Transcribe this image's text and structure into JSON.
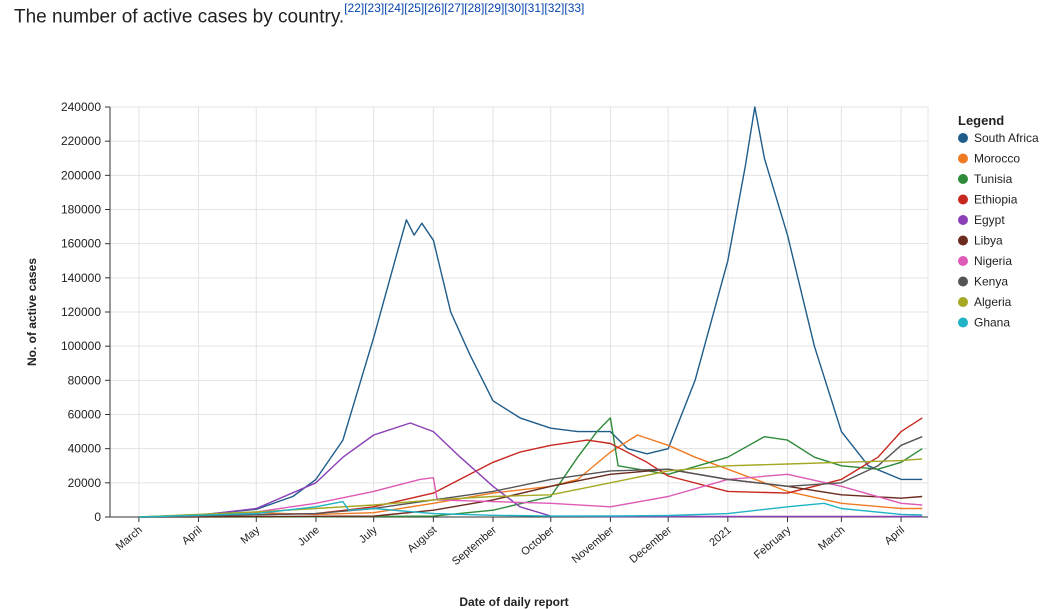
{
  "caption": {
    "text": "The number of active cases by country.",
    "refs": [
      "[22]",
      "[23]",
      "[24]",
      "[25]",
      "[26]",
      "[27]",
      "[28]",
      "[29]",
      "[30]",
      "[31]",
      "[32]",
      "[33]"
    ]
  },
  "chart_data": {
    "type": "line",
    "title": "",
    "xlabel": "Date of daily report",
    "ylabel": "No. of active cases",
    "ylim": [
      0,
      240000
    ],
    "xlim": [
      "2020-02-15",
      "2021-04-15"
    ],
    "yticks": [
      0,
      20000,
      40000,
      60000,
      80000,
      100000,
      120000,
      140000,
      160000,
      180000,
      200000,
      220000,
      240000
    ],
    "xticks": [
      {
        "label": "March",
        "date": "2020-03-01"
      },
      {
        "label": "April",
        "date": "2020-04-01"
      },
      {
        "label": "May",
        "date": "2020-05-01"
      },
      {
        "label": "June",
        "date": "2020-06-01"
      },
      {
        "label": "July",
        "date": "2020-07-01"
      },
      {
        "label": "August",
        "date": "2020-08-01"
      },
      {
        "label": "September",
        "date": "2020-09-01"
      },
      {
        "label": "October",
        "date": "2020-10-01"
      },
      {
        "label": "November",
        "date": "2020-11-01"
      },
      {
        "label": "December",
        "date": "2020-12-01"
      },
      {
        "label": "2021",
        "date": "2021-01-01"
      },
      {
        "label": "February",
        "date": "2021-02-01"
      },
      {
        "label": "March",
        "date": "2021-03-01"
      },
      {
        "label": "April",
        "date": "2021-04-01"
      }
    ],
    "grid": true,
    "legend": {
      "title": "Legend",
      "position": "right"
    },
    "series": [
      {
        "name": "South Africa",
        "color": "#1f5c8a",
        "points": [
          [
            "2020-03-01",
            0
          ],
          [
            "2020-04-01",
            1200
          ],
          [
            "2020-05-01",
            4500
          ],
          [
            "2020-05-20",
            12000
          ],
          [
            "2020-06-01",
            22000
          ],
          [
            "2020-06-15",
            45000
          ],
          [
            "2020-07-01",
            105000
          ],
          [
            "2020-07-12",
            150000
          ],
          [
            "2020-07-18",
            174000
          ],
          [
            "2020-07-22",
            165000
          ],
          [
            "2020-07-26",
            172000
          ],
          [
            "2020-08-01",
            162000
          ],
          [
            "2020-08-10",
            120000
          ],
          [
            "2020-08-20",
            95000
          ],
          [
            "2020-09-01",
            68000
          ],
          [
            "2020-09-15",
            58000
          ],
          [
            "2020-10-01",
            52000
          ],
          [
            "2020-10-15",
            50000
          ],
          [
            "2020-11-01",
            50000
          ],
          [
            "2020-11-10",
            40000
          ],
          [
            "2020-11-20",
            37000
          ],
          [
            "2020-12-01",
            40000
          ],
          [
            "2020-12-15",
            80000
          ],
          [
            "2021-01-01",
            150000
          ],
          [
            "2021-01-10",
            205000
          ],
          [
            "2021-01-15",
            240000
          ],
          [
            "2021-01-20",
            210000
          ],
          [
            "2021-02-01",
            165000
          ],
          [
            "2021-02-15",
            100000
          ],
          [
            "2021-03-01",
            50000
          ],
          [
            "2021-03-15",
            30000
          ],
          [
            "2021-04-01",
            22000
          ],
          [
            "2021-04-12",
            22000
          ]
        ]
      },
      {
        "name": "Morocco",
        "color": "#f07b24",
        "points": [
          [
            "2020-03-01",
            0
          ],
          [
            "2020-04-01",
            800
          ],
          [
            "2020-05-01",
            2500
          ],
          [
            "2020-06-01",
            1500
          ],
          [
            "2020-07-01",
            2500
          ],
          [
            "2020-08-01",
            8000
          ],
          [
            "2020-09-01",
            14000
          ],
          [
            "2020-10-01",
            18000
          ],
          [
            "2020-10-15",
            22000
          ],
          [
            "2020-11-01",
            38000
          ],
          [
            "2020-11-15",
            48000
          ],
          [
            "2020-12-01",
            42000
          ],
          [
            "2020-12-15",
            35000
          ],
          [
            "2021-01-01",
            28000
          ],
          [
            "2021-02-01",
            15000
          ],
          [
            "2021-03-01",
            8000
          ],
          [
            "2021-04-01",
            5000
          ],
          [
            "2021-04-12",
            5000
          ]
        ]
      },
      {
        "name": "Tunisia",
        "color": "#2e8b3a",
        "points": [
          [
            "2020-03-01",
            0
          ],
          [
            "2020-06-01",
            100
          ],
          [
            "2020-08-01",
            500
          ],
          [
            "2020-09-01",
            4000
          ],
          [
            "2020-10-01",
            12000
          ],
          [
            "2020-10-15",
            35000
          ],
          [
            "2020-10-25",
            50000
          ],
          [
            "2020-11-01",
            58000
          ],
          [
            "2020-11-05",
            30000
          ],
          [
            "2020-12-01",
            25000
          ],
          [
            "2021-01-01",
            35000
          ],
          [
            "2021-01-20",
            47000
          ],
          [
            "2021-02-01",
            45000
          ],
          [
            "2021-02-15",
            35000
          ],
          [
            "2021-03-01",
            30000
          ],
          [
            "2021-03-20",
            28000
          ],
          [
            "2021-04-01",
            32000
          ],
          [
            "2021-04-12",
            40000
          ]
        ]
      },
      {
        "name": "Ethiopia",
        "color": "#c8271f",
        "points": [
          [
            "2020-03-01",
            0
          ],
          [
            "2020-06-01",
            2000
          ],
          [
            "2020-07-01",
            6000
          ],
          [
            "2020-08-01",
            14000
          ],
          [
            "2020-09-01",
            32000
          ],
          [
            "2020-09-15",
            38000
          ],
          [
            "2020-10-01",
            42000
          ],
          [
            "2020-10-20",
            45000
          ],
          [
            "2020-11-01",
            43000
          ],
          [
            "2020-11-20",
            32000
          ],
          [
            "2020-12-01",
            24000
          ],
          [
            "2021-01-01",
            15000
          ],
          [
            "2021-02-01",
            14000
          ],
          [
            "2021-03-01",
            22000
          ],
          [
            "2021-03-20",
            35000
          ],
          [
            "2021-04-01",
            50000
          ],
          [
            "2021-04-12",
            58000
          ]
        ]
      },
      {
        "name": "Egypt",
        "color": "#8a3fb6",
        "points": [
          [
            "2020-03-01",
            0
          ],
          [
            "2020-04-01",
            1000
          ],
          [
            "2020-05-01",
            5000
          ],
          [
            "2020-06-01",
            20000
          ],
          [
            "2020-06-15",
            35000
          ],
          [
            "2020-07-01",
            48000
          ],
          [
            "2020-07-20",
            55000
          ],
          [
            "2020-08-01",
            50000
          ],
          [
            "2020-08-15",
            35000
          ],
          [
            "2020-09-01",
            18000
          ],
          [
            "2020-09-15",
            6000
          ],
          [
            "2020-10-01",
            500
          ],
          [
            "2020-11-01",
            300
          ],
          [
            "2020-12-01",
            300
          ],
          [
            "2021-04-12",
            300
          ]
        ]
      },
      {
        "name": "Libya",
        "color": "#6b2b1e",
        "points": [
          [
            "2020-03-01",
            0
          ],
          [
            "2020-07-01",
            500
          ],
          [
            "2020-08-01",
            4000
          ],
          [
            "2020-09-01",
            10000
          ],
          [
            "2020-10-01",
            18000
          ],
          [
            "2020-11-01",
            25000
          ],
          [
            "2020-12-01",
            28000
          ],
          [
            "2021-01-01",
            22000
          ],
          [
            "2021-02-01",
            18000
          ],
          [
            "2021-03-01",
            13000
          ],
          [
            "2021-04-01",
            11000
          ],
          [
            "2021-04-12",
            12000
          ]
        ]
      },
      {
        "name": "Nigeria",
        "color": "#de5bb5",
        "points": [
          [
            "2020-03-01",
            0
          ],
          [
            "2020-04-01",
            500
          ],
          [
            "2020-05-01",
            3000
          ],
          [
            "2020-06-01",
            8000
          ],
          [
            "2020-07-01",
            15000
          ],
          [
            "2020-07-25",
            22000
          ],
          [
            "2020-08-01",
            23000
          ],
          [
            "2020-08-03",
            10000
          ],
          [
            "2020-09-01",
            9000
          ],
          [
            "2020-10-01",
            8000
          ],
          [
            "2020-11-01",
            6000
          ],
          [
            "2020-12-01",
            12000
          ],
          [
            "2021-01-01",
            22000
          ],
          [
            "2021-02-01",
            25000
          ],
          [
            "2021-03-01",
            18000
          ],
          [
            "2021-04-01",
            8000
          ],
          [
            "2021-04-12",
            7000
          ]
        ]
      },
      {
        "name": "Kenya",
        "color": "#555555",
        "points": [
          [
            "2020-03-01",
            0
          ],
          [
            "2020-06-01",
            2000
          ],
          [
            "2020-07-01",
            5000
          ],
          [
            "2020-08-01",
            10000
          ],
          [
            "2020-09-01",
            15000
          ],
          [
            "2020-10-01",
            22000
          ],
          [
            "2020-11-01",
            27000
          ],
          [
            "2020-12-01",
            28000
          ],
          [
            "2021-01-01",
            22000
          ],
          [
            "2021-02-01",
            18000
          ],
          [
            "2021-03-01",
            20000
          ],
          [
            "2021-03-20",
            30000
          ],
          [
            "2021-04-01",
            42000
          ],
          [
            "2021-04-12",
            47000
          ]
        ]
      },
      {
        "name": "Algeria",
        "color": "#a5a823",
        "points": [
          [
            "2020-03-01",
            0
          ],
          [
            "2020-05-01",
            3000
          ],
          [
            "2020-06-01",
            5000
          ],
          [
            "2020-07-01",
            7000
          ],
          [
            "2020-08-01",
            10000
          ],
          [
            "2020-09-01",
            12000
          ],
          [
            "2020-10-01",
            13000
          ],
          [
            "2020-11-01",
            20000
          ],
          [
            "2020-12-01",
            27000
          ],
          [
            "2021-01-01",
            30000
          ],
          [
            "2021-02-01",
            31000
          ],
          [
            "2021-03-01",
            32000
          ],
          [
            "2021-04-01",
            33000
          ],
          [
            "2021-04-12",
            34000
          ]
        ]
      },
      {
        "name": "Ghana",
        "color": "#1fb3c4",
        "points": [
          [
            "2020-03-01",
            0
          ],
          [
            "2020-05-01",
            2000
          ],
          [
            "2020-06-01",
            6000
          ],
          [
            "2020-06-15",
            9000
          ],
          [
            "2020-06-18",
            4000
          ],
          [
            "2020-07-01",
            5000
          ],
          [
            "2020-08-01",
            2000
          ],
          [
            "2020-09-01",
            1000
          ],
          [
            "2020-10-01",
            500
          ],
          [
            "2020-11-01",
            600
          ],
          [
            "2020-12-01",
            900
          ],
          [
            "2021-01-01",
            2000
          ],
          [
            "2021-02-01",
            6000
          ],
          [
            "2021-02-20",
            8000
          ],
          [
            "2021-03-01",
            5000
          ],
          [
            "2021-04-01",
            1500
          ],
          [
            "2021-04-12",
            1200
          ]
        ]
      }
    ]
  }
}
